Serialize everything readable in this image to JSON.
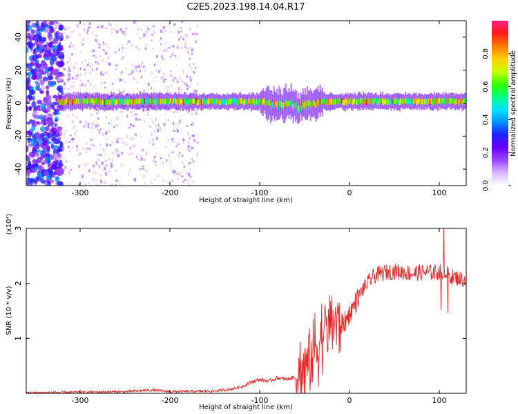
{
  "figure": {
    "title": "C2E5.2023.198.14.04.R17"
  },
  "colors": {
    "snr_line": "#ee2222",
    "frame": "#000000",
    "colormap": [
      "#ffffff",
      "#d6b8ff",
      "#9b47ff",
      "#6a00ff",
      "#1f1fff",
      "#0090ff",
      "#00e5ff",
      "#00ff7f",
      "#33ff00",
      "#ccff00",
      "#ffd000",
      "#ff7a00",
      "#ff1a1a",
      "#ff2080"
    ]
  },
  "chart_data": [
    {
      "type": "heatmap",
      "name": "spectrogram",
      "xlabel": "Height of straight line (km)",
      "ylabel": "Frequency (Hz)",
      "xlim": [
        -360,
        130
      ],
      "ylim": [
        -50,
        50
      ],
      "xticks": [
        -300,
        -200,
        -100,
        0,
        100
      ],
      "yticks": [
        -40,
        -20,
        0,
        20,
        40
      ],
      "colorbar": {
        "label": "Normalized spectral amplitude",
        "range": [
          0,
          1
        ],
        "ticks": [
          "0.0",
          "0.2",
          "0.4",
          "0.6",
          "0.8"
        ]
      },
      "band": {
        "center_frequency_hz": 1,
        "start_km": -325,
        "end_km": 130,
        "peak_amplitude": 1.0
      },
      "noise_region_km": [
        -360,
        -320
      ],
      "scattered_noise_km": [
        -320,
        -170
      ],
      "disturbance_km": [
        -100,
        -30
      ],
      "grid": false
    },
    {
      "type": "line",
      "name": "snr",
      "xlabel": "Height of straight line (km)",
      "ylabel": "SNR (10 * v/v)",
      "scale_label": "(x10⁴)",
      "xlim": [
        -360,
        130
      ],
      "ylim": [
        0,
        3
      ],
      "xticks": [
        -300,
        -200,
        -100,
        0,
        100
      ],
      "yticks": [
        1,
        2,
        3
      ],
      "series": [
        {
          "x": [
            -360,
            -300,
            -250,
            -220,
            -200,
            -150,
            -130,
            -120,
            -110,
            -100,
            -90,
            -80,
            -70,
            -60,
            -50,
            -45,
            -40,
            -35,
            -30,
            -25,
            -20,
            -15,
            -10,
            -5,
            0,
            5,
            10,
            15,
            20,
            25,
            30,
            40,
            50,
            60,
            70,
            80,
            90,
            100,
            105,
            110,
            115,
            120,
            130
          ],
          "values": [
            0.01,
            0.02,
            0.03,
            0.06,
            0.03,
            0.04,
            0.08,
            0.12,
            0.2,
            0.25,
            0.22,
            0.28,
            0.25,
            0.3,
            0.45,
            0.6,
            0.75,
            0.9,
            1.05,
            1.2,
            1.35,
            1.3,
            1.25,
            1.3,
            1.45,
            1.6,
            1.75,
            1.9,
            2.0,
            2.1,
            2.15,
            2.2,
            2.22,
            2.2,
            2.18,
            2.2,
            2.2,
            2.2,
            2.25,
            2.15,
            2.12,
            2.1,
            2.05
          ]
        }
      ],
      "grid": false
    }
  ]
}
